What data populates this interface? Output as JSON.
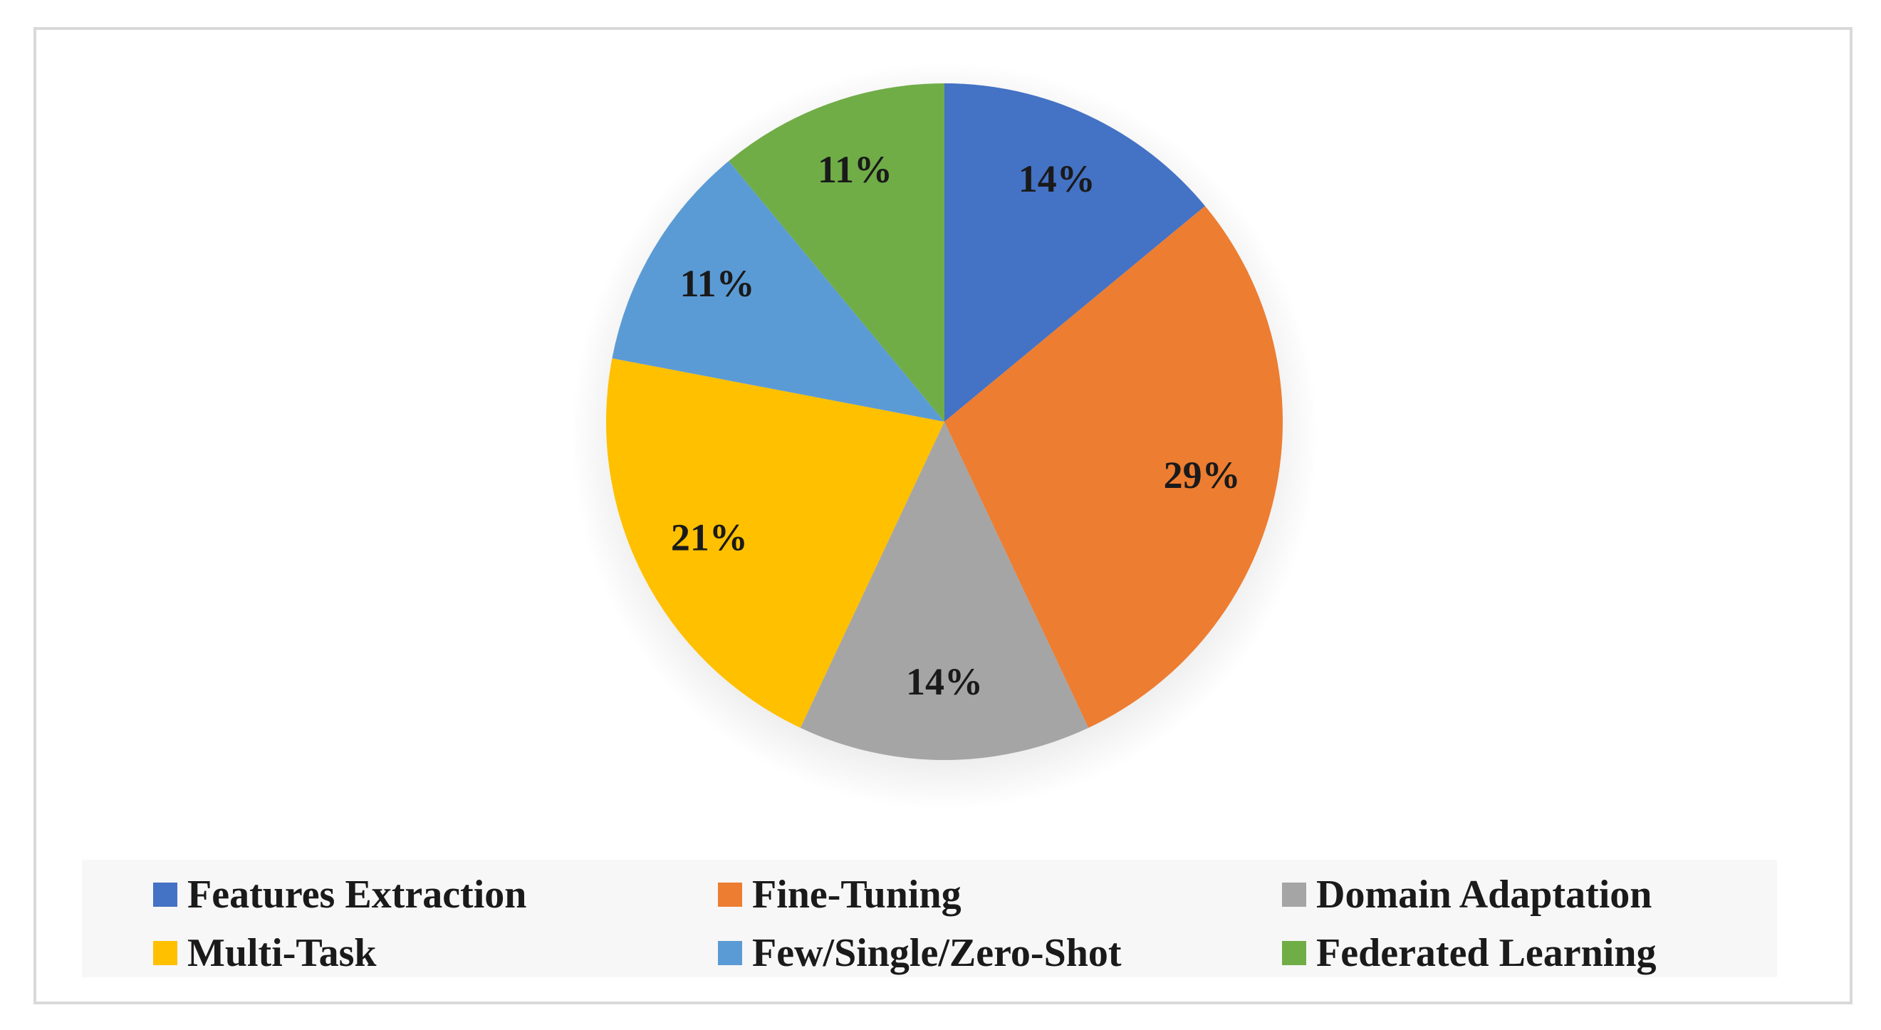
{
  "chart_data": {
    "type": "pie",
    "title": "",
    "slices": [
      {
        "label": "Features Extraction",
        "value": 14,
        "display": "14%",
        "color": "#4472C4"
      },
      {
        "label": "Fine-Tuning",
        "value": 29,
        "display": "29%",
        "color": "#ED7D31"
      },
      {
        "label": "Domain Adaptation",
        "value": 14,
        "display": "14%",
        "color": "#A5A5A5"
      },
      {
        "label": "Multi-Task",
        "value": 21,
        "display": "21%",
        "color": "#FFC000"
      },
      {
        "label": "Few/Single/Zero-Shot",
        "value": 11,
        "display": "11%",
        "color": "#5B9BD5"
      },
      {
        "label": "Federated Learning",
        "value": 11,
        "display": "11%",
        "color": "#70AD47"
      }
    ],
    "start_angle": "12 o'clock",
    "direction": "clockwise",
    "legend_position": "bottom"
  }
}
